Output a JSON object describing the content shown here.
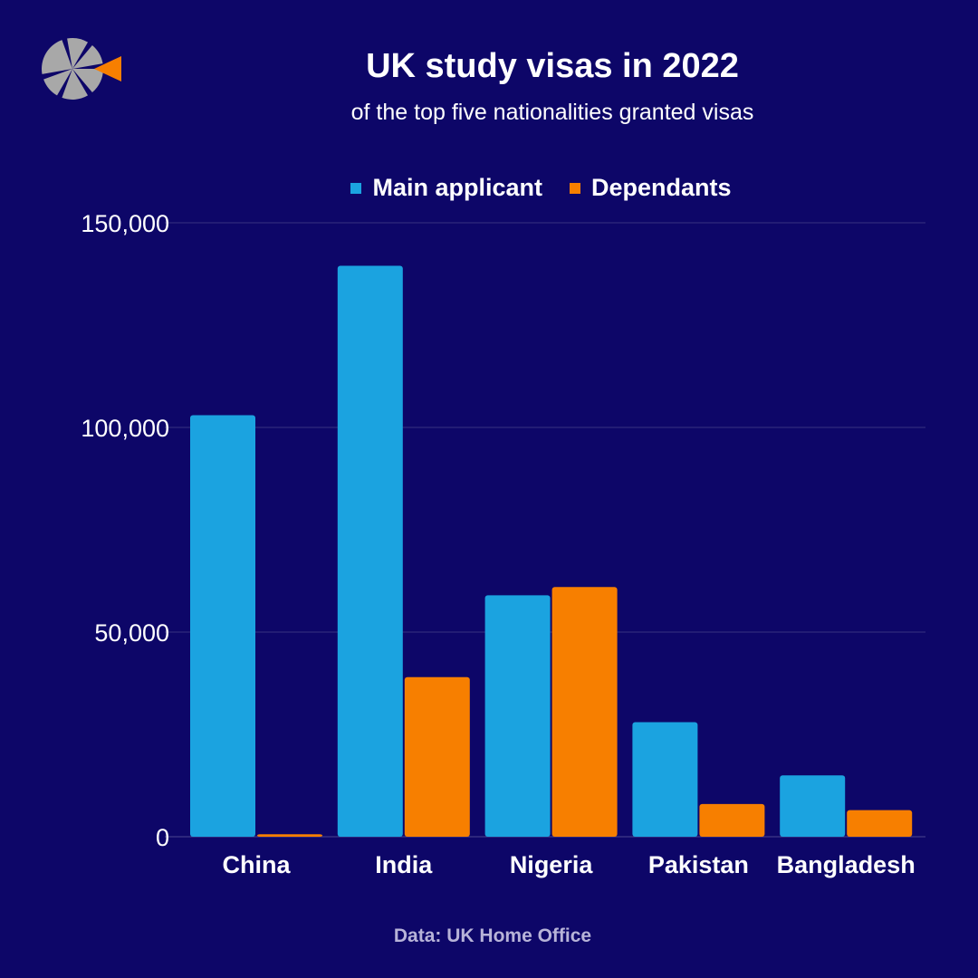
{
  "header": {
    "title": "UK study visas in 2022",
    "subtitle": "of the top five nationalities granted visas"
  },
  "footer": {
    "source": "Data: UK Home Office"
  },
  "colors": {
    "background": "#0d0668",
    "main_applicant": "#1ba3e0",
    "dependants": "#f77f00",
    "logo_gray": "#a8a8a8",
    "logo_orange": "#f77f00"
  },
  "chart_data": {
    "type": "bar",
    "title": "UK study visas in 2022",
    "subtitle": "of the top five nationalities granted visas",
    "categories": [
      "China",
      "India",
      "Nigeria",
      "Pakistan",
      "Bangladesh"
    ],
    "series": [
      {
        "name": "Main applicant",
        "color": "#1ba3e0",
        "values": [
          103000,
          139500,
          59000,
          28000,
          15000
        ]
      },
      {
        "name": "Dependants",
        "color": "#f77f00",
        "values": [
          600,
          39000,
          61000,
          8000,
          6500
        ]
      }
    ],
    "yticks": [
      0,
      50000,
      100000,
      150000
    ],
    "ytick_labels": [
      "0",
      "50,000",
      "100,000",
      "150,000"
    ],
    "ylim": [
      0,
      150000
    ],
    "grid": true,
    "legend_position": "top-center",
    "source": "Data: UK Home Office"
  }
}
